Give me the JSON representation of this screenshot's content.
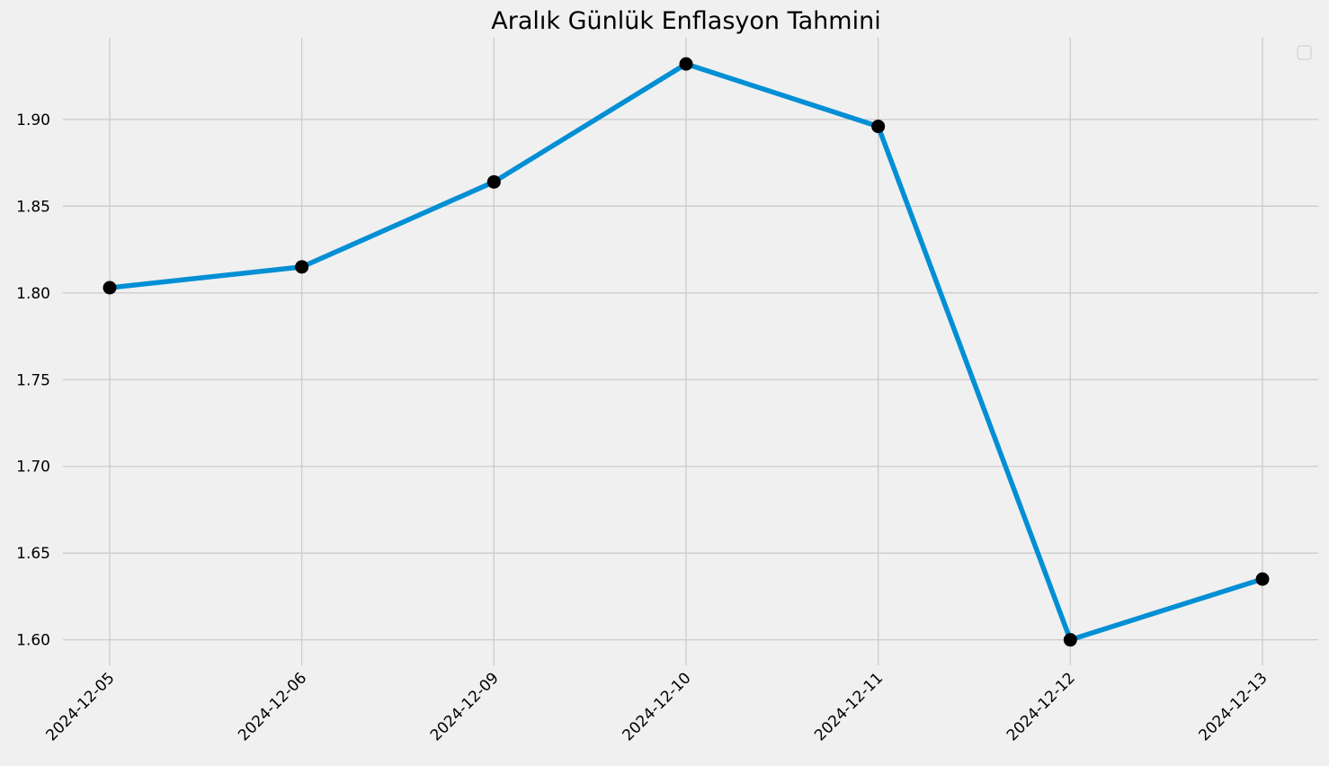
{
  "chart_data": {
    "type": "line",
    "title": "Aralık Günlük Enflasyon Tahmini",
    "xlabel": "",
    "ylabel": "",
    "categories": [
      "2024-12-05",
      "2024-12-06",
      "2024-12-09",
      "2024-12-10",
      "2024-12-11",
      "2024-12-12",
      "2024-12-13"
    ],
    "series": [
      {
        "values": [
          1.803,
          1.815,
          1.864,
          1.932,
          1.896,
          1.6,
          1.635
        ],
        "color": "#008fd5",
        "marker_color": "#000000"
      }
    ],
    "yticks": [
      "1.60",
      "1.65",
      "1.70",
      "1.75",
      "1.80",
      "1.85",
      "1.90"
    ],
    "ylim": [
      1.5853,
      1.9471
    ],
    "grid": true,
    "legend": "top-right (empty)",
    "x_tick_rotation": 45,
    "background_color": "#f0f0f0",
    "grid_color": "#cbcbcb"
  }
}
